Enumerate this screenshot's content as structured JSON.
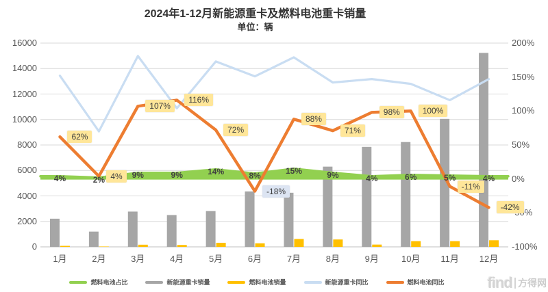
{
  "title": "2024年1-12月新能源重卡及燃料电池重卡销量",
  "subtitle": "单位：辆",
  "watermark": {
    "latin": "find",
    "cjk": "方得网"
  },
  "chart_data": {
    "type": "combo",
    "title": "2024年1-12月新能源重卡及燃料电池重卡销量",
    "subtitle": "单位：辆",
    "categories": [
      "1月",
      "2月",
      "3月",
      "4月",
      "5月",
      "6月",
      "7月",
      "8月",
      "9月",
      "10月",
      "11月",
      "12月"
    ],
    "left_axis": {
      "min": 0,
      "max": 16000,
      "step": 2000,
      "ticks": [
        "0",
        "2000",
        "4000",
        "6000",
        "8000",
        "10000",
        "12000",
        "14000",
        "16000"
      ]
    },
    "right_axis": {
      "min": -100,
      "max": 200,
      "step": 50,
      "ticks": [
        "-100%",
        "-50%",
        "0%",
        "50%",
        "100%",
        "150%",
        "200%"
      ]
    },
    "grid": true,
    "legend_position": "bottom",
    "series": [
      {
        "name": "燃料电池占比",
        "type": "area",
        "axis": "right",
        "color": "#92D050",
        "values": [
          4,
          2,
          9,
          9,
          14,
          8,
          15,
          9,
          4,
          6,
          5,
          4
        ],
        "labels": [
          "4%",
          "2%",
          "9%",
          "9%",
          "14%",
          "8%",
          "15%",
          "9%",
          "4%",
          "6%",
          "5%",
          "4%"
        ],
        "label_style": "plain"
      },
      {
        "name": "新能源重卡销量",
        "type": "bar",
        "axis": "left",
        "color": "#A6A6A6",
        "values": [
          2210,
          1200,
          2770,
          2500,
          2810,
          4350,
          4250,
          6300,
          7850,
          8230,
          10050,
          15230
        ]
      },
      {
        "name": "燃料电池销量",
        "type": "bar",
        "axis": "left",
        "color": "#FFC000",
        "values": [
          80,
          30,
          170,
          150,
          320,
          280,
          620,
          580,
          180,
          450,
          450,
          520
        ]
      },
      {
        "name": "新能源重卡同比",
        "type": "line",
        "axis": "right",
        "color": "#C9DDF2",
        "values": [
          152,
          70,
          181,
          104,
          173,
          151,
          179,
          142,
          147,
          140,
          116,
          147
        ]
      },
      {
        "name": "燃料电池同比",
        "type": "line",
        "axis": "right",
        "color": "#ED7D31",
        "values": [
          62,
          4,
          107,
          116,
          72,
          -18,
          88,
          71,
          98,
          100,
          -11,
          -42
        ],
        "labels": [
          "62%",
          "4%",
          "107%",
          "116%",
          "72%",
          "-18%",
          "88%",
          "71%",
          "98%",
          "100%",
          "-11%",
          "-42%"
        ],
        "label_bg": "#FFE699",
        "label_bg_special": {
          "5": "#DCE4F2"
        }
      }
    ]
  }
}
